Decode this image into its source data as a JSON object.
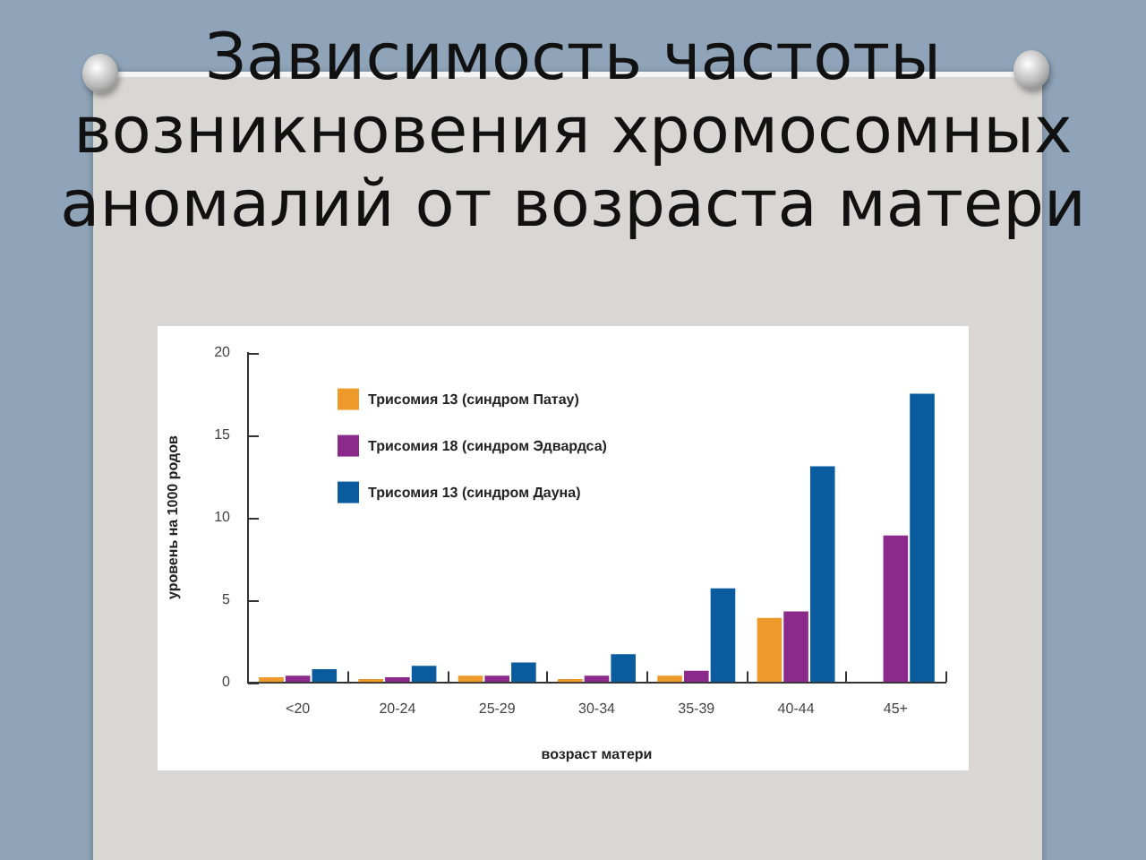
{
  "chart_data": {
    "type": "bar",
    "title": "Зависимость частоты возникновения хромосомных аномалий от возраста матери",
    "xlabel": "возраст матери",
    "ylabel": "уровень на 1000 родов",
    "categories": [
      "<20",
      "20-24",
      "25-29",
      "30-34",
      "35-39",
      "40-44",
      "45+"
    ],
    "series": [
      {
        "name": "Трисомия 13 (синдром Патау)",
        "color": "#ee9a2a",
        "values": [
          0.3,
          0.2,
          0.4,
          0.2,
          0.4,
          3.9,
          null
        ]
      },
      {
        "name": "Трисомия 18 (синдром Эдвардса)",
        "color": "#8c2a8c",
        "values": [
          0.4,
          0.3,
          0.4,
          0.4,
          0.7,
          4.3,
          8.9
        ]
      },
      {
        "name": "Трисомия 13 (синдром Дауна)",
        "color": "#0b5c9e",
        "values": [
          0.8,
          1.0,
          1.2,
          1.7,
          5.7,
          13.1,
          17.5
        ]
      }
    ],
    "ylim": [
      0,
      20
    ],
    "yticks": [
      0,
      5,
      10,
      15,
      20
    ],
    "grid": false,
    "legend": "top left"
  }
}
